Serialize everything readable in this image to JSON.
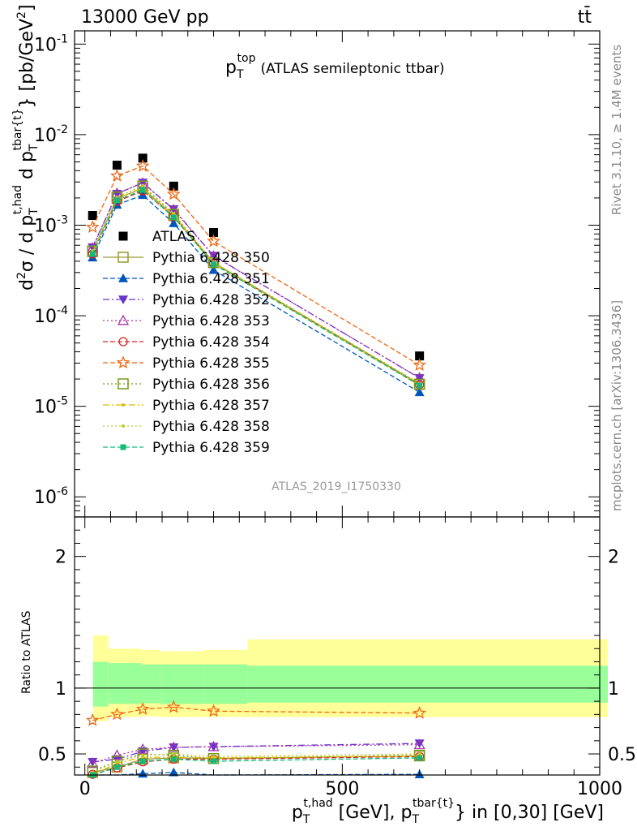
{
  "header": {
    "energy_label": "13000 GeV pp",
    "process_label": "tt̄",
    "rivet_label": "Rivet 3.1.10, ≥ 1.4M events",
    "mcplots_label": "mcplots.cern.ch [arXiv:1306.3436]",
    "analysis_id": "ATLAS_2019_I1750330"
  },
  "chart_data": [
    {
      "type": "scatter",
      "panel": "main",
      "title": "p_T^top (ATLAS semileptonic ttbar)",
      "title_main": "p",
      "title_sub": "T",
      "title_sup": "top",
      "title_rest": "(ATLAS semileptonic ttbar)",
      "ylabel": "d²σ / d p_T^{t,had} d p_T^{tbar{t}} [pb/GeV²]",
      "yscale": "log",
      "ylim": [
        6e-07,
        0.14
      ],
      "xlim": [
        -20,
        1000
      ],
      "ytick_labels": [
        "10^{-6}",
        "10^{-5}",
        "10^{-4}",
        "10^{-3}",
        "10^{-2}",
        "10^{-1}"
      ],
      "x": [
        15,
        62.5,
        112.5,
        172.5,
        250,
        650
      ],
      "series": [
        {
          "name": "ATLAS",
          "color": "#000000",
          "marker": "square-filled",
          "line": "none",
          "values": [
            0.00128,
            0.0046,
            0.0055,
            0.0027,
            0.00083,
            3.6e-05
          ]
        },
        {
          "name": "Pythia 6.428 350",
          "color": "#999933",
          "marker": "square-open",
          "line": "solid",
          "values": [
            0.00051,
            0.00198,
            0.00255,
            0.00127,
            0.000385,
            1.75e-05
          ]
        },
        {
          "name": "Pythia 6.428 351",
          "color": "#0055bb",
          "marker": "triangle-up-filled",
          "line": "dashed",
          "values": [
            0.00044,
            0.00168,
            0.00215,
            0.00105,
            0.00032,
            1.43e-05
          ]
        },
        {
          "name": "Pythia 6.428 352",
          "color": "#6633cc",
          "marker": "triangle-down-filled",
          "line": "dashdot",
          "values": [
            0.00057,
            0.00222,
            0.00295,
            0.0015,
            0.00046,
            2.05e-05
          ]
        },
        {
          "name": "Pythia 6.428 353",
          "color": "#aa33aa",
          "marker": "triangle-up-open",
          "line": "dotted",
          "values": [
            0.00056,
            0.00225,
            0.00292,
            0.00148,
            0.000455,
            2.06e-05
          ]
        },
        {
          "name": "Pythia 6.428 354",
          "color": "#dd2222",
          "marker": "circle-open",
          "line": "dashed",
          "values": [
            0.00048,
            0.00183,
            0.0024,
            0.00124,
            0.00038,
            1.73e-05
          ]
        },
        {
          "name": "Pythia 6.428 355",
          "color": "#ee6611",
          "marker": "star-open",
          "line": "dashed",
          "values": [
            0.00095,
            0.0035,
            0.0045,
            0.0022,
            0.000665,
            2.85e-05
          ]
        },
        {
          "name": "Pythia 6.428 356",
          "color": "#779922",
          "marker": "square-open",
          "line": "dotted",
          "values": [
            0.00052,
            0.00205,
            0.0027,
            0.00132,
            0.000385,
            1.75e-05
          ]
        },
        {
          "name": "Pythia 6.428 357",
          "color": "#ddbb00",
          "marker": "dot",
          "line": "dashdot",
          "values": [
            0.0005,
            0.00196,
            0.00258,
            0.00128,
            0.00038,
            1.72e-05
          ]
        },
        {
          "name": "Pythia 6.428 358",
          "color": "#bbcc22",
          "marker": "dot",
          "line": "dotted",
          "values": [
            0.00052,
            0.00203,
            0.00274,
            0.00135,
            0.00039,
            1.8e-05
          ]
        },
        {
          "name": "Pythia 6.428 359",
          "color": "#11bb77",
          "marker": "square-filled-small",
          "line": "dashed",
          "values": [
            0.00048,
            0.00188,
            0.00245,
            0.00122,
            0.000372,
            1.7e-05
          ]
        }
      ]
    },
    {
      "type": "line",
      "panel": "ratio",
      "ylabel": "Ratio to ATLAS",
      "xlabel": "p_T^{t,had} [GeV], p_T^{tbar{t}} in [0,30] [GeV]",
      "ylim": [
        0.34,
        2.3
      ],
      "xlim": [
        -20,
        1000
      ],
      "ytick_labels": [
        "0.5",
        "1",
        "2"
      ],
      "xtick_labels": [
        "0",
        "500",
        "1000"
      ],
      "band_bins": [
        0,
        30,
        95,
        130,
        215,
        300,
        1000
      ],
      "band_inner": [
        [
          0.86,
          1.2
        ],
        [
          0.88,
          1.19
        ],
        [
          0.885,
          1.18
        ],
        [
          0.88,
          1.18
        ],
        [
          0.88,
          1.18
        ],
        [
          0.89,
          1.17
        ]
      ],
      "band_outer": [
        [
          0.75,
          1.4
        ],
        [
          0.78,
          1.3
        ],
        [
          0.785,
          1.29
        ],
        [
          0.78,
          1.28
        ],
        [
          0.78,
          1.29
        ],
        [
          0.78,
          1.37
        ]
      ],
      "x": [
        15,
        62.5,
        112.5,
        172.5,
        250,
        650
      ],
      "series": [
        {
          "name": "Pythia 6.428 350",
          "values": [
            0.36,
            0.4,
            0.46,
            0.47,
            0.465,
            0.485
          ]
        },
        {
          "name": "Pythia 6.428 351",
          "values": [
            0.29,
            0.33,
            0.35,
            0.36,
            0.32,
            0.345
          ]
        },
        {
          "name": "Pythia 6.428 352",
          "values": [
            0.44,
            0.46,
            0.52,
            0.55,
            0.555,
            0.58
          ]
        },
        {
          "name": "Pythia 6.428 353",
          "values": [
            0.43,
            0.49,
            0.535,
            0.55,
            0.555,
            0.57
          ]
        },
        {
          "name": "Pythia 6.428 354",
          "values": [
            0.345,
            0.395,
            0.44,
            0.46,
            0.46,
            0.48
          ]
        },
        {
          "name": "Pythia 6.428 355",
          "values": [
            0.755,
            0.8,
            0.84,
            0.855,
            0.825,
            0.81
          ]
        },
        {
          "name": "Pythia 6.428 356",
          "values": [
            0.37,
            0.445,
            0.5,
            0.49,
            0.465,
            0.49
          ]
        },
        {
          "name": "Pythia 6.428 357",
          "values": [
            0.34,
            0.43,
            0.475,
            0.475,
            0.47,
            0.485
          ]
        },
        {
          "name": "Pythia 6.428 358",
          "values": [
            0.36,
            0.445,
            0.49,
            0.5,
            0.48,
            0.5
          ]
        },
        {
          "name": "Pythia 6.428 359",
          "values": [
            0.34,
            0.4,
            0.445,
            0.46,
            0.445,
            0.47
          ]
        }
      ]
    }
  ]
}
